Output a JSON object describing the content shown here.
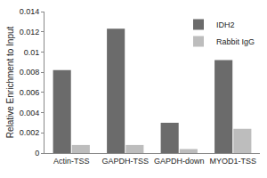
{
  "chart_data": {
    "type": "bar",
    "categories": [
      "Actin-TSS",
      "GAPDH-TSS",
      "GAPDH-down",
      "MYOD1-TSS"
    ],
    "series": [
      {
        "name": "IDH2",
        "color": "#6b6b6b",
        "values": [
          0.0082,
          0.0123,
          0.003,
          0.0092
        ]
      },
      {
        "name": "Rabbit IgG",
        "color": "#bdbdbd",
        "values": [
          0.0008,
          0.0008,
          0.0004,
          0.0024
        ]
      }
    ],
    "y_label": "Relative Enrichment to Input",
    "ylim": [
      0,
      0.014
    ],
    "yticks": [
      0,
      0.002,
      0.004,
      0.006,
      0.008,
      0.01,
      0.012,
      0.014
    ],
    "grid": false,
    "legend": "top right"
  }
}
